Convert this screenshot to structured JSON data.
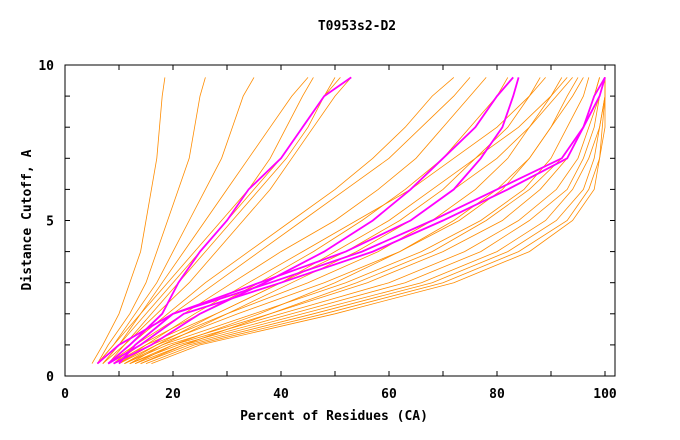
{
  "chart_data": {
    "type": "line",
    "title": "T0953s2-D2",
    "xlabel": "Percent of Residues (CA)",
    "ylabel": "Distance Cutoff, A",
    "xlim": [
      0,
      100
    ],
    "ylim": [
      0,
      10
    ],
    "x_ticks": [
      "0",
      "20",
      "40",
      "60",
      "80",
      "100"
    ],
    "y_ticks": [
      "0",
      "5",
      "10"
    ],
    "grid": false,
    "colors": {
      "other_models": "#ff8c00",
      "highlighted": "#ff00ff"
    },
    "y_levels": [
      0.4,
      1,
      2,
      3,
      4,
      5,
      6,
      7,
      8,
      9,
      9.6
    ],
    "series_orange": [
      [
        5,
        7,
        10,
        12,
        14,
        15,
        16,
        17,
        17.5,
        18,
        18.5
      ],
      [
        6,
        8,
        12,
        15,
        17,
        19,
        21,
        23,
        24,
        25,
        26
      ],
      [
        6,
        9,
        13,
        17,
        20,
        23,
        26,
        29,
        31,
        33,
        35
      ],
      [
        7,
        10,
        15,
        20,
        25,
        30,
        35,
        40,
        44,
        48,
        50
      ],
      [
        7,
        11,
        17,
        23,
        28,
        33,
        38,
        42,
        46,
        50,
        53
      ],
      [
        8,
        12,
        19,
        26,
        34,
        42,
        50,
        57,
        63,
        68,
        72
      ],
      [
        8,
        13,
        22,
        31,
        40,
        50,
        58,
        65,
        70,
        75,
        78
      ],
      [
        9,
        14,
        25,
        36,
        46,
        55,
        63,
        70,
        75,
        80,
        82
      ],
      [
        9,
        15,
        28,
        40,
        52,
        62,
        70,
        76,
        82,
        86,
        88
      ],
      [
        10,
        16,
        30,
        45,
        58,
        68,
        76,
        82,
        86,
        90,
        92
      ],
      [
        10,
        17,
        32,
        48,
        62,
        73,
        81,
        86,
        90,
        93,
        95
      ],
      [
        11,
        18,
        35,
        52,
        66,
        77,
        85,
        90,
        93,
        96,
        97
      ],
      [
        11,
        19,
        38,
        56,
        70,
        81,
        88,
        93,
        96,
        98,
        99
      ],
      [
        12,
        20,
        40,
        60,
        74,
        84,
        91,
        95,
        97,
        99,
        100
      ],
      [
        12,
        21,
        42,
        63,
        77,
        86,
        93,
        96,
        98,
        99,
        100
      ],
      [
        13,
        22,
        44,
        66,
        80,
        89,
        94,
        97,
        99,
        100,
        100
      ],
      [
        14,
        23,
        46,
        68,
        82,
        91,
        96,
        98,
        99,
        100,
        100
      ],
      [
        15,
        24,
        48,
        70,
        84,
        93,
        97,
        99,
        100,
        100,
        100
      ],
      [
        16,
        25,
        50,
        72,
        86,
        94,
        98,
        99,
        99.5,
        100,
        100
      ],
      [
        9,
        13,
        20,
        28,
        36,
        44,
        52,
        60,
        66,
        72,
        75
      ],
      [
        8,
        11,
        16,
        21,
        26,
        31,
        36,
        41,
        45,
        48,
        51
      ],
      [
        10,
        15,
        24,
        34,
        44,
        54,
        64,
        72,
        80,
        86,
        89
      ],
      [
        12,
        18,
        30,
        42,
        54,
        64,
        72,
        80,
        86,
        91,
        94
      ],
      [
        13,
        20,
        36,
        50,
        62,
        72,
        80,
        86,
        90,
        94,
        96
      ],
      [
        7,
        10,
        14,
        18,
        22,
        26,
        30,
        34,
        38,
        42,
        45
      ],
      [
        11,
        17,
        28,
        40,
        50,
        60,
        68,
        76,
        84,
        90,
        93
      ],
      [
        14,
        22,
        38,
        54,
        68,
        78,
        86,
        92,
        96,
        98,
        99
      ],
      [
        6,
        9,
        14,
        19,
        24,
        29,
        34,
        38,
        41,
        44,
        46
      ]
    ],
    "series_magenta": [
      [
        8,
        12,
        18,
        21,
        25,
        30,
        34,
        40,
        44,
        48,
        53
      ],
      [
        10,
        13,
        20,
        36,
        52,
        64,
        72,
        77,
        81,
        83,
        84
      ],
      [
        8,
        14,
        22,
        40,
        57,
        70,
        82,
        93,
        96,
        98,
        100
      ],
      [
        9,
        16,
        25,
        37,
        48,
        57,
        64,
        70,
        76,
        80,
        83
      ],
      [
        6,
        10,
        20,
        38,
        55,
        68,
        80,
        92,
        96,
        99,
        100
      ]
    ]
  }
}
